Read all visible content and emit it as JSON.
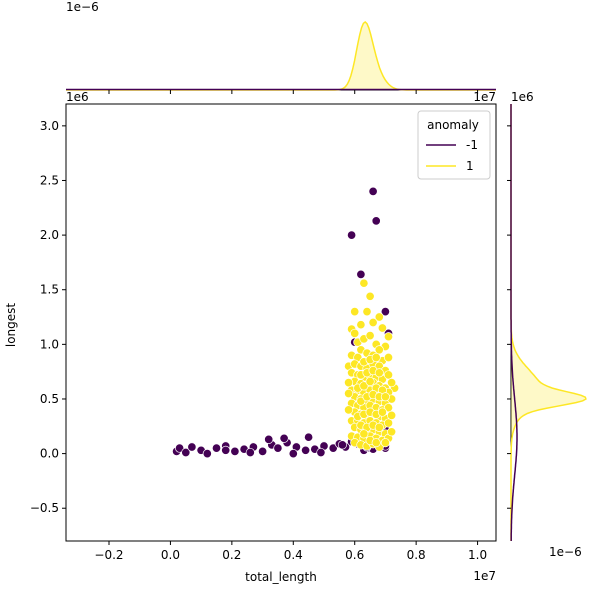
{
  "chart_data": {
    "type": "scatter",
    "x_label": "total_length",
    "y_label": "longest",
    "x_offset_label": "1e7",
    "y_offset_label": "1e6",
    "top_marginal_offset_label": "1e−6",
    "right_marginal_offset_label": "1e−6",
    "xlim": [
      -0.34,
      1.06
    ],
    "ylim": [
      -0.8,
      3.2
    ],
    "x_ticks": [
      -0.2,
      0.0,
      0.2,
      0.4,
      0.6,
      0.8,
      1.0
    ],
    "x_tick_labels": [
      "−0.2",
      "0.0",
      "0.2",
      "0.4",
      "0.6",
      "0.8",
      "1.0"
    ],
    "y_ticks": [
      -0.5,
      0.0,
      0.5,
      1.0,
      1.5,
      2.0,
      2.5,
      3.0
    ],
    "y_tick_labels": [
      "−0.5",
      "0.0",
      "0.5",
      "1.0",
      "1.5",
      "2.0",
      "2.5",
      "3.0"
    ],
    "grid": false,
    "legend": {
      "title": "anomaly",
      "placement": "top-right",
      "entries": [
        {
          "label": "-1",
          "color": "#440154"
        },
        {
          "label": "1",
          "color": "#fde725"
        }
      ]
    },
    "series": [
      {
        "name": "-1",
        "color": "#440154",
        "points": [
          [
            0.02,
            0.02
          ],
          [
            0.03,
            0.05
          ],
          [
            0.05,
            0.01
          ],
          [
            0.07,
            0.06
          ],
          [
            0.1,
            0.03
          ],
          [
            0.12,
            0.0
          ],
          [
            0.15,
            0.05
          ],
          [
            0.18,
            0.07
          ],
          [
            0.21,
            0.02
          ],
          [
            0.24,
            0.04
          ],
          [
            0.27,
            0.06
          ],
          [
            0.3,
            0.02
          ],
          [
            0.33,
            0.08
          ],
          [
            0.35,
            0.05
          ],
          [
            0.38,
            0.1
          ],
          [
            0.41,
            0.06
          ],
          [
            0.44,
            0.03
          ],
          [
            0.47,
            0.04
          ],
          [
            0.5,
            0.07
          ],
          [
            0.53,
            0.05
          ],
          [
            0.55,
            0.09
          ],
          [
            0.57,
            0.06
          ],
          [
            0.59,
            0.11
          ],
          [
            0.61,
            0.09
          ],
          [
            0.63,
            0.03
          ],
          [
            0.65,
            0.05
          ],
          [
            0.68,
            0.07
          ],
          [
            0.7,
            0.05
          ],
          [
            0.18,
            0.03
          ],
          [
            0.26,
            0.01
          ],
          [
            0.32,
            0.13
          ],
          [
            0.37,
            0.14
          ],
          [
            0.4,
            0.0
          ],
          [
            0.45,
            0.15
          ],
          [
            0.49,
            0.01
          ],
          [
            0.56,
            0.08
          ],
          [
            0.59,
            2.0
          ],
          [
            0.66,
            2.4
          ],
          [
            0.67,
            2.13
          ],
          [
            0.62,
            1.64
          ],
          [
            0.6,
            1.02
          ],
          [
            0.7,
            1.3
          ],
          [
            0.71,
            1.1
          ],
          [
            0.7,
            0.22
          ],
          [
            0.66,
            0.04
          ],
          [
            0.7,
            0.07
          ],
          [
            0.64,
            0.06
          ],
          [
            0.61,
            0.12
          ]
        ]
      },
      {
        "name": "1",
        "color": "#fde725",
        "points": [
          [
            0.63,
            1.56
          ],
          [
            0.65,
            1.44
          ],
          [
            0.6,
            1.3
          ],
          [
            0.64,
            1.3
          ],
          [
            0.68,
            1.25
          ],
          [
            0.66,
            1.2
          ],
          [
            0.62,
            1.18
          ],
          [
            0.69,
            1.15
          ],
          [
            0.59,
            1.14
          ],
          [
            0.71,
            1.07
          ],
          [
            0.73,
            0.6
          ],
          [
            0.58,
            0.8
          ],
          [
            0.6,
            1.1
          ],
          [
            0.61,
            1.02
          ],
          [
            0.63,
            1.05
          ],
          [
            0.65,
            1.08
          ],
          [
            0.67,
            1.0
          ],
          [
            0.7,
            0.98
          ],
          [
            0.62,
            0.95
          ],
          [
            0.64,
            0.92
          ],
          [
            0.66,
            0.9
          ],
          [
            0.68,
            0.95
          ],
          [
            0.59,
            0.9
          ],
          [
            0.61,
            0.88
          ],
          [
            0.69,
            0.85
          ],
          [
            0.71,
            0.88
          ],
          [
            0.6,
            0.82
          ],
          [
            0.62,
            0.8
          ],
          [
            0.64,
            0.78
          ],
          [
            0.66,
            0.82
          ],
          [
            0.68,
            0.8
          ],
          [
            0.7,
            0.76
          ],
          [
            0.59,
            0.74
          ],
          [
            0.61,
            0.72
          ],
          [
            0.63,
            0.7
          ],
          [
            0.65,
            0.72
          ],
          [
            0.67,
            0.7
          ],
          [
            0.69,
            0.68
          ],
          [
            0.71,
            0.72
          ],
          [
            0.6,
            0.66
          ],
          [
            0.62,
            0.64
          ],
          [
            0.64,
            0.62
          ],
          [
            0.66,
            0.65
          ],
          [
            0.68,
            0.62
          ],
          [
            0.7,
            0.6
          ],
          [
            0.59,
            0.58
          ],
          [
            0.61,
            0.58
          ],
          [
            0.63,
            0.56
          ],
          [
            0.65,
            0.58
          ],
          [
            0.67,
            0.55
          ],
          [
            0.69,
            0.54
          ],
          [
            0.71,
            0.56
          ],
          [
            0.6,
            0.52
          ],
          [
            0.62,
            0.5
          ],
          [
            0.64,
            0.48
          ],
          [
            0.66,
            0.5
          ],
          [
            0.68,
            0.48
          ],
          [
            0.7,
            0.46
          ],
          [
            0.59,
            0.46
          ],
          [
            0.61,
            0.44
          ],
          [
            0.63,
            0.42
          ],
          [
            0.65,
            0.44
          ],
          [
            0.67,
            0.42
          ],
          [
            0.69,
            0.4
          ],
          [
            0.71,
            0.42
          ],
          [
            0.6,
            0.38
          ],
          [
            0.62,
            0.36
          ],
          [
            0.64,
            0.34
          ],
          [
            0.66,
            0.36
          ],
          [
            0.68,
            0.34
          ],
          [
            0.7,
            0.32
          ],
          [
            0.59,
            0.3
          ],
          [
            0.61,
            0.3
          ],
          [
            0.63,
            0.28
          ],
          [
            0.65,
            0.3
          ],
          [
            0.67,
            0.28
          ],
          [
            0.69,
            0.26
          ],
          [
            0.71,
            0.28
          ],
          [
            0.6,
            0.24
          ],
          [
            0.62,
            0.22
          ],
          [
            0.64,
            0.2
          ],
          [
            0.66,
            0.22
          ],
          [
            0.68,
            0.2
          ],
          [
            0.7,
            0.18
          ],
          [
            0.59,
            0.16
          ],
          [
            0.61,
            0.15
          ],
          [
            0.63,
            0.14
          ],
          [
            0.65,
            0.16
          ],
          [
            0.67,
            0.14
          ],
          [
            0.69,
            0.12
          ],
          [
            0.71,
            0.14
          ],
          [
            0.6,
            0.1
          ],
          [
            0.62,
            0.08
          ],
          [
            0.64,
            0.07
          ],
          [
            0.66,
            0.09
          ],
          [
            0.68,
            0.06
          ],
          [
            0.7,
            0.1
          ],
          [
            0.58,
            0.4
          ],
          [
            0.58,
            0.55
          ],
          [
            0.58,
            0.65
          ],
          [
            0.72,
            0.5
          ],
          [
            0.72,
            0.65
          ],
          [
            0.72,
            0.35
          ],
          [
            0.72,
            0.2
          ],
          [
            0.61,
            0.6
          ],
          [
            0.63,
            0.62
          ],
          [
            0.65,
            0.66
          ],
          [
            0.67,
            0.6
          ],
          [
            0.69,
            0.58
          ],
          [
            0.62,
            0.72
          ],
          [
            0.64,
            0.74
          ],
          [
            0.66,
            0.76
          ],
          [
            0.68,
            0.74
          ],
          [
            0.63,
            0.84
          ],
          [
            0.65,
            0.86
          ],
          [
            0.67,
            0.88
          ],
          [
            0.62,
            0.48
          ],
          [
            0.64,
            0.52
          ],
          [
            0.66,
            0.54
          ],
          [
            0.68,
            0.52
          ],
          [
            0.7,
            0.52
          ],
          [
            0.61,
            0.34
          ],
          [
            0.63,
            0.36
          ],
          [
            0.65,
            0.38
          ],
          [
            0.67,
            0.36
          ],
          [
            0.69,
            0.38
          ],
          [
            0.62,
            0.26
          ],
          [
            0.64,
            0.24
          ],
          [
            0.66,
            0.26
          ],
          [
            0.68,
            0.24
          ],
          [
            0.63,
            0.18
          ],
          [
            0.65,
            0.12
          ],
          [
            0.67,
            0.1
          ]
        ]
      }
    ],
    "marginal_x": {
      "series": [
        {
          "name": "1",
          "color": "#fde725",
          "peak_x": 0.63,
          "sd": 0.025
        },
        {
          "name": "-1",
          "color": "#440154",
          "range": [
            -0.34,
            1.06
          ]
        }
      ]
    },
    "marginal_y": {
      "series": [
        {
          "name": "1",
          "color": "#fde725",
          "peak_y": 0.5,
          "sd": 0.11
        },
        {
          "name": "-1",
          "color": "#440154",
          "range": [
            -0.8,
            1.5
          ]
        }
      ]
    }
  }
}
